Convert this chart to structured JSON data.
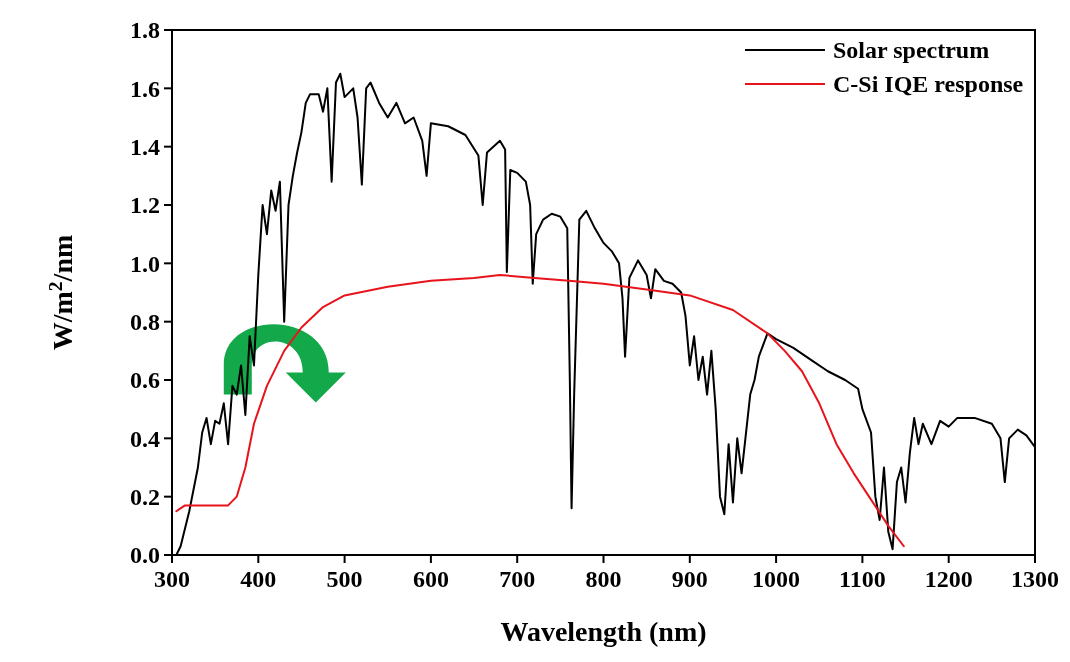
{
  "chart_data": {
    "type": "line",
    "xlabel": "Wavelength (nm)",
    "ylabel": "W/m$^{2}$/nm",
    "xlim": [
      300,
      1300
    ],
    "ylim": [
      0,
      1.8
    ],
    "xticks": [
      300,
      400,
      500,
      600,
      700,
      800,
      900,
      1000,
      1100,
      1200,
      1300
    ],
    "yticks": [
      {
        "value": 0,
        "label": "0.0"
      },
      {
        "value": 0.2,
        "label": "0.2"
      },
      {
        "value": 0.4,
        "label": "0.4"
      },
      {
        "value": 0.6,
        "label": "0.6"
      },
      {
        "value": 0.8,
        "label": "0.8"
      },
      {
        "value": 1.0,
        "label": "1.0"
      },
      {
        "value": 1.2,
        "label": "1.2"
      },
      {
        "value": 1.4,
        "label": "1.4"
      },
      {
        "value": 1.6,
        "label": "1.6"
      },
      {
        "value": 1.8,
        "label": "1.8"
      }
    ],
    "grid": false,
    "legend": "top right",
    "marker": "none",
    "line_style": "solid",
    "series": [
      {
        "name": "Solar spectrum",
        "color": "#000000",
        "x": [
          305,
          310,
          320,
          330,
          335,
          340,
          345,
          350,
          355,
          360,
          365,
          370,
          375,
          380,
          385,
          390,
          395,
          400,
          405,
          410,
          415,
          420,
          425,
          430,
          435,
          440,
          445,
          450,
          455,
          460,
          470,
          475,
          480,
          485,
          490,
          495,
          500,
          510,
          515,
          520,
          525,
          530,
          540,
          550,
          560,
          570,
          580,
          590,
          595,
          600,
          620,
          640,
          655,
          660,
          665,
          680,
          686,
          688,
          692,
          700,
          710,
          715,
          718,
          722,
          730,
          740,
          750,
          758,
          761,
          763,
          766,
          772,
          780,
          790,
          800,
          810,
          818,
          822,
          825,
          830,
          840,
          850,
          855,
          860,
          870,
          880,
          890,
          895,
          900,
          905,
          910,
          915,
          920,
          925,
          930,
          935,
          940,
          945,
          950,
          955,
          960,
          970,
          975,
          980,
          990,
          1000,
          1020,
          1040,
          1060,
          1080,
          1095,
          1100,
          1110,
          1115,
          1120,
          1125,
          1130,
          1135,
          1140,
          1145,
          1150,
          1155,
          1160,
          1165,
          1170,
          1180,
          1190,
          1200,
          1210,
          1230,
          1250,
          1260,
          1265,
          1270,
          1280,
          1290,
          1300
        ],
        "values": [
          0.0,
          0.03,
          0.15,
          0.3,
          0.42,
          0.47,
          0.38,
          0.46,
          0.45,
          0.52,
          0.38,
          0.58,
          0.55,
          0.65,
          0.48,
          0.75,
          0.65,
          0.96,
          1.2,
          1.1,
          1.25,
          1.18,
          1.28,
          0.8,
          1.2,
          1.3,
          1.38,
          1.45,
          1.55,
          1.58,
          1.58,
          1.52,
          1.6,
          1.28,
          1.62,
          1.65,
          1.57,
          1.6,
          1.5,
          1.27,
          1.6,
          1.62,
          1.55,
          1.5,
          1.55,
          1.48,
          1.5,
          1.42,
          1.3,
          1.48,
          1.47,
          1.44,
          1.37,
          1.2,
          1.38,
          1.42,
          1.39,
          0.97,
          1.32,
          1.31,
          1.28,
          1.2,
          0.93,
          1.1,
          1.15,
          1.17,
          1.16,
          1.12,
          0.6,
          0.16,
          0.55,
          1.15,
          1.18,
          1.12,
          1.07,
          1.04,
          1.0,
          0.88,
          0.68,
          0.95,
          1.01,
          0.96,
          0.88,
          0.98,
          0.94,
          0.93,
          0.9,
          0.82,
          0.65,
          0.75,
          0.6,
          0.68,
          0.55,
          0.7,
          0.5,
          0.2,
          0.14,
          0.38,
          0.18,
          0.4,
          0.28,
          0.55,
          0.6,
          0.68,
          0.76,
          0.74,
          0.71,
          0.67,
          0.63,
          0.6,
          0.57,
          0.5,
          0.42,
          0.2,
          0.12,
          0.3,
          0.08,
          0.02,
          0.25,
          0.3,
          0.18,
          0.35,
          0.47,
          0.38,
          0.45,
          0.38,
          0.46,
          0.44,
          0.47,
          0.47,
          0.45,
          0.4,
          0.25,
          0.4,
          0.43,
          0.41,
          0.37
        ]
      },
      {
        "name": "C-Si IQE response",
        "color": "#e8141c",
        "x": [
          305,
          315,
          330,
          350,
          365,
          375,
          385,
          395,
          410,
          430,
          450,
          475,
          500,
          550,
          600,
          650,
          680,
          720,
          760,
          800,
          850,
          900,
          950,
          990,
          1010,
          1030,
          1050,
          1070,
          1090,
          1110,
          1130,
          1148
        ],
        "values": [
          0.15,
          0.17,
          0.17,
          0.17,
          0.17,
          0.2,
          0.3,
          0.45,
          0.58,
          0.7,
          0.78,
          0.85,
          0.89,
          0.92,
          0.94,
          0.95,
          0.96,
          0.95,
          0.94,
          0.93,
          0.91,
          0.89,
          0.84,
          0.76,
          0.7,
          0.63,
          0.52,
          0.38,
          0.28,
          0.19,
          0.1,
          0.03
        ]
      }
    ]
  }
}
